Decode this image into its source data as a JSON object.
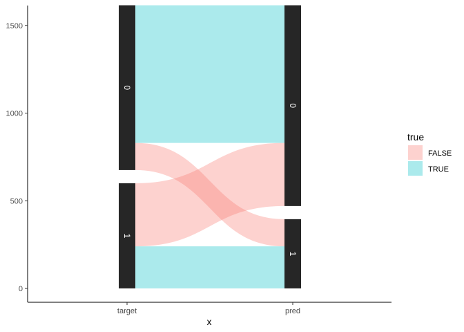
{
  "chart_data": {
    "type": "alluvial",
    "xlabel": "x",
    "ylabel": "",
    "axes": [
      "target",
      "pred"
    ],
    "ylim": [
      0,
      1540
    ],
    "yticks": [
      0,
      500,
      1000,
      1500
    ],
    "strata": {
      "target": [
        {
          "label": "1",
          "value": 600
        },
        {
          "label": "0",
          "value": 940
        }
      ],
      "pred": [
        {
          "label": "1",
          "value": 395
        },
        {
          "label": "0",
          "value": 1145
        }
      ]
    },
    "flows": [
      {
        "from": "1",
        "to": "1",
        "fill": "TRUE",
        "value": 240
      },
      {
        "from": "1",
        "to": "0",
        "fill": "FALSE",
        "value": 360
      },
      {
        "from": "0",
        "to": "1",
        "fill": "FALSE",
        "value": 155
      },
      {
        "from": "0",
        "to": "0",
        "fill": "TRUE",
        "value": 785
      }
    ],
    "legend": {
      "title": "true",
      "position": "right",
      "items": [
        {
          "label": "FALSE",
          "color": "#F8766D"
        },
        {
          "label": "TRUE",
          "color": "#00BFC4"
        }
      ]
    },
    "grid": false
  }
}
